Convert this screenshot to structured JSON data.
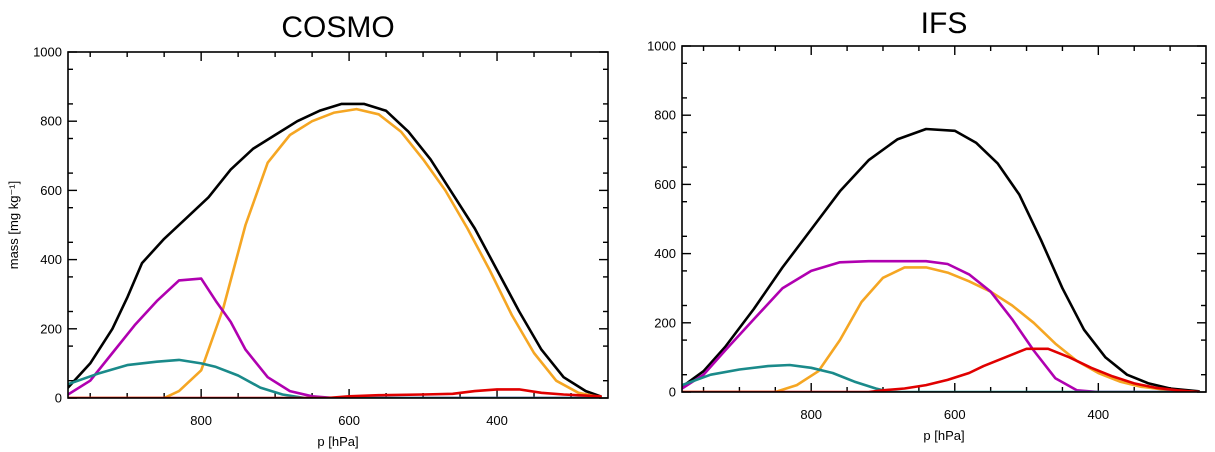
{
  "chart_data": [
    {
      "type": "line",
      "title": "COSMO",
      "xlabel": "p [hPa]",
      "ylabel": "mass [mg kg⁻¹]",
      "xlim": [
        980,
        250
      ],
      "ylim": [
        0,
        1000
      ],
      "x_ticks": [
        800,
        600,
        400
      ],
      "y_ticks": [
        0,
        200,
        400,
        600,
        800,
        1000
      ],
      "grid": false,
      "series": [
        {
          "color": "#000000",
          "points": [
            [
              980,
              30
            ],
            [
              950,
              100
            ],
            [
              920,
              200
            ],
            [
              900,
              290
            ],
            [
              880,
              390
            ],
            [
              850,
              460
            ],
            [
              820,
              520
            ],
            [
              790,
              580
            ],
            [
              760,
              660
            ],
            [
              730,
              720
            ],
            [
              700,
              760
            ],
            [
              670,
              800
            ],
            [
              640,
              830
            ],
            [
              610,
              850
            ],
            [
              580,
              850
            ],
            [
              550,
              830
            ],
            [
              520,
              770
            ],
            [
              490,
              690
            ],
            [
              460,
              590
            ],
            [
              430,
              490
            ],
            [
              400,
              370
            ],
            [
              370,
              250
            ],
            [
              340,
              140
            ],
            [
              310,
              60
            ],
            [
              280,
              20
            ],
            [
              260,
              5
            ]
          ]
        },
        {
          "color": "#f5a623",
          "points": [
            [
              980,
              0
            ],
            [
              850,
              0
            ],
            [
              830,
              20
            ],
            [
              800,
              80
            ],
            [
              770,
              260
            ],
            [
              740,
              500
            ],
            [
              710,
              680
            ],
            [
              680,
              760
            ],
            [
              650,
              800
            ],
            [
              620,
              825
            ],
            [
              590,
              835
            ],
            [
              560,
              820
            ],
            [
              530,
              770
            ],
            [
              500,
              690
            ],
            [
              470,
              600
            ],
            [
              440,
              490
            ],
            [
              410,
              370
            ],
            [
              380,
              240
            ],
            [
              350,
              130
            ],
            [
              320,
              50
            ],
            [
              290,
              15
            ],
            [
              260,
              2
            ]
          ]
        },
        {
          "color": "#b000b0",
          "points": [
            [
              980,
              10
            ],
            [
              950,
              50
            ],
            [
              920,
              130
            ],
            [
              890,
              210
            ],
            [
              860,
              280
            ],
            [
              830,
              340
            ],
            [
              800,
              345
            ],
            [
              780,
              280
            ],
            [
              760,
              220
            ],
            [
              740,
              140
            ],
            [
              710,
              60
            ],
            [
              680,
              20
            ],
            [
              650,
              5
            ],
            [
              620,
              0
            ],
            [
              260,
              0
            ]
          ]
        },
        {
          "color": "#1a8a8a",
          "points": [
            [
              980,
              40
            ],
            [
              940,
              70
            ],
            [
              900,
              95
            ],
            [
              860,
              105
            ],
            [
              830,
              110
            ],
            [
              800,
              100
            ],
            [
              780,
              90
            ],
            [
              750,
              65
            ],
            [
              720,
              30
            ],
            [
              690,
              10
            ],
            [
              660,
              0
            ],
            [
              260,
              0
            ]
          ]
        },
        {
          "color": "#e00000",
          "points": [
            [
              980,
              0
            ],
            [
              680,
              0
            ],
            [
              630,
              0
            ],
            [
              600,
              5
            ],
            [
              560,
              8
            ],
            [
              500,
              10
            ],
            [
              460,
              12
            ],
            [
              430,
              20
            ],
            [
              400,
              25
            ],
            [
              370,
              25
            ],
            [
              340,
              15
            ],
            [
              310,
              10
            ],
            [
              260,
              5
            ]
          ]
        }
      ]
    },
    {
      "type": "line",
      "title": "IFS",
      "xlabel": "p [hPa]",
      "ylabel": "",
      "xlim": [
        980,
        250
      ],
      "ylim": [
        0,
        1000
      ],
      "x_ticks": [
        800,
        600,
        400
      ],
      "y_ticks": [
        0,
        200,
        400,
        600,
        800,
        1000
      ],
      "grid": false,
      "series": [
        {
          "color": "#000000",
          "points": [
            [
              980,
              15
            ],
            [
              950,
              60
            ],
            [
              920,
              130
            ],
            [
              880,
              240
            ],
            [
              840,
              360
            ],
            [
              800,
              470
            ],
            [
              760,
              580
            ],
            [
              720,
              670
            ],
            [
              680,
              730
            ],
            [
              640,
              760
            ],
            [
              600,
              755
            ],
            [
              570,
              720
            ],
            [
              540,
              660
            ],
            [
              510,
              570
            ],
            [
              480,
              440
            ],
            [
              450,
              300
            ],
            [
              420,
              180
            ],
            [
              390,
              100
            ],
            [
              360,
              50
            ],
            [
              330,
              25
            ],
            [
              300,
              10
            ],
            [
              260,
              2
            ]
          ]
        },
        {
          "color": "#f5a623",
          "points": [
            [
              980,
              0
            ],
            [
              850,
              0
            ],
            [
              820,
              20
            ],
            [
              790,
              60
            ],
            [
              760,
              150
            ],
            [
              730,
              260
            ],
            [
              700,
              330
            ],
            [
              670,
              360
            ],
            [
              640,
              360
            ],
            [
              610,
              345
            ],
            [
              580,
              320
            ],
            [
              550,
              290
            ],
            [
              520,
              250
            ],
            [
              490,
              200
            ],
            [
              460,
              140
            ],
            [
              430,
              90
            ],
            [
              400,
              55
            ],
            [
              370,
              30
            ],
            [
              340,
              15
            ],
            [
              300,
              5
            ],
            [
              260,
              0
            ]
          ]
        },
        {
          "color": "#b000b0",
          "points": [
            [
              980,
              10
            ],
            [
              950,
              50
            ],
            [
              920,
              120
            ],
            [
              880,
              210
            ],
            [
              840,
              300
            ],
            [
              800,
              350
            ],
            [
              760,
              375
            ],
            [
              720,
              378
            ],
            [
              680,
              378
            ],
            [
              640,
              378
            ],
            [
              610,
              370
            ],
            [
              580,
              340
            ],
            [
              550,
              290
            ],
            [
              520,
              210
            ],
            [
              490,
              120
            ],
            [
              460,
              40
            ],
            [
              430,
              5
            ],
            [
              400,
              0
            ],
            [
              260,
              0
            ]
          ]
        },
        {
          "color": "#1a8a8a",
          "points": [
            [
              980,
              20
            ],
            [
              940,
              50
            ],
            [
              900,
              65
            ],
            [
              860,
              75
            ],
            [
              830,
              78
            ],
            [
              800,
              70
            ],
            [
              770,
              55
            ],
            [
              740,
              30
            ],
            [
              710,
              10
            ],
            [
              690,
              0
            ],
            [
              260,
              0
            ]
          ]
        },
        {
          "color": "#e00000",
          "points": [
            [
              980,
              0
            ],
            [
              720,
              0
            ],
            [
              700,
              5
            ],
            [
              670,
              10
            ],
            [
              640,
              20
            ],
            [
              610,
              35
            ],
            [
              580,
              55
            ],
            [
              560,
              75
            ],
            [
              530,
              100
            ],
            [
              500,
              125
            ],
            [
              470,
              125
            ],
            [
              440,
              100
            ],
            [
              410,
              70
            ],
            [
              380,
              45
            ],
            [
              350,
              25
            ],
            [
              320,
              12
            ],
            [
              290,
              5
            ],
            [
              260,
              0
            ]
          ]
        }
      ]
    }
  ]
}
